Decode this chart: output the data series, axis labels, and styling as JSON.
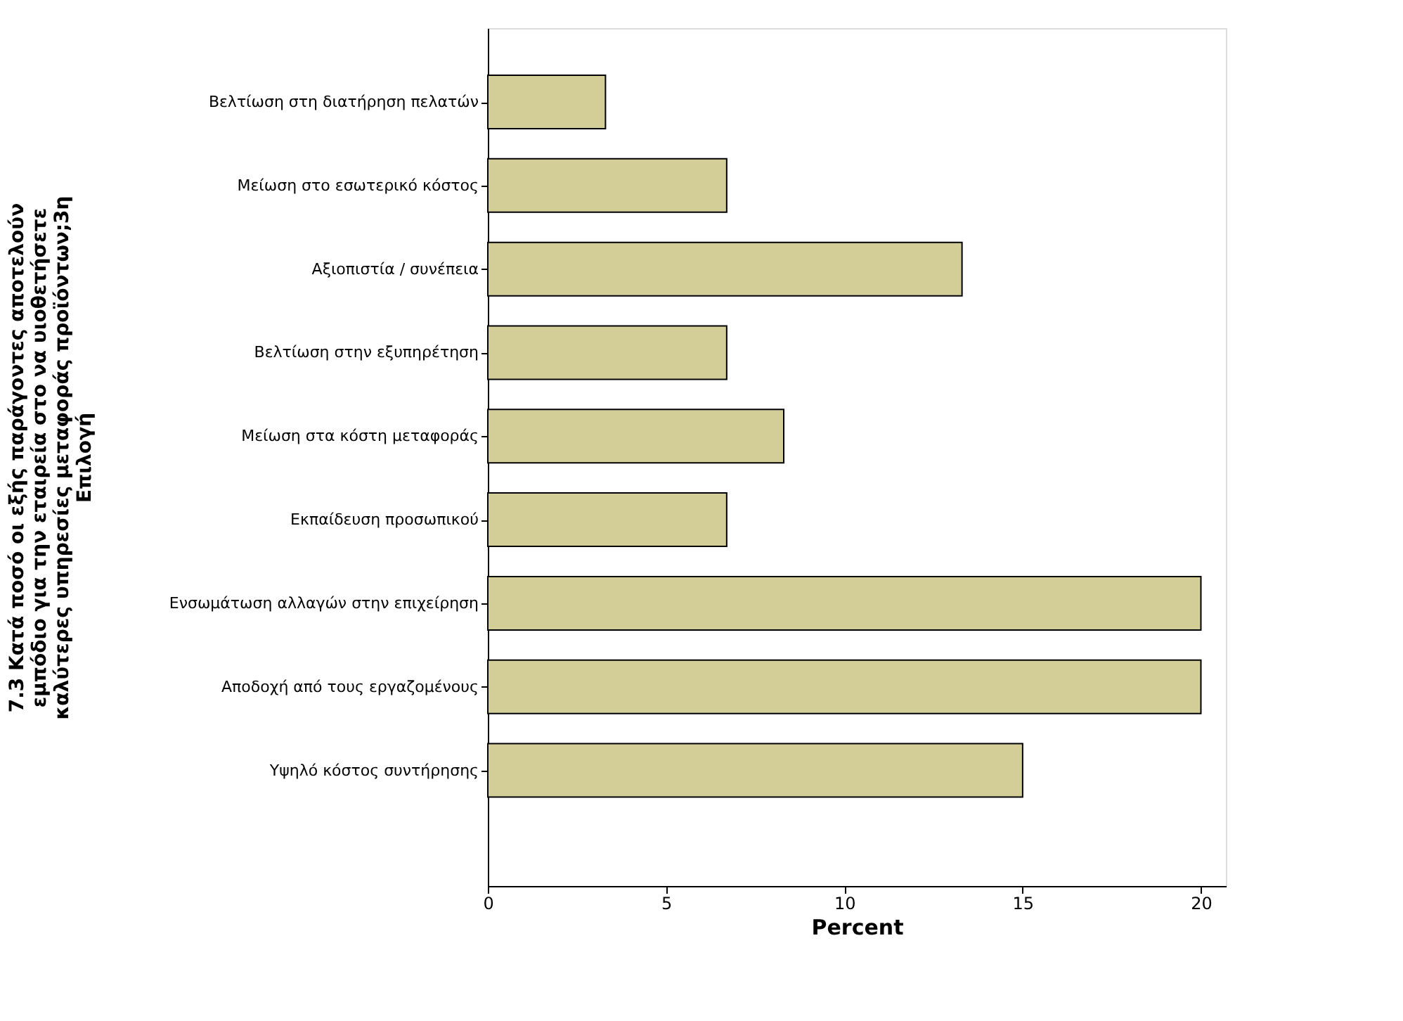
{
  "chart_data": {
    "type": "bar",
    "orientation": "horizontal",
    "ylabel": "7.3 Κατά ποσό οι εξής παράγοντες αποτελούν\nεμπόδιο για την εταιρεία στο να υιοθετήσετε\nκαλύτερες υπηρεσίες μεταφοράς προϊόντων;3η\nΕπιλογή",
    "xlabel": "Percent",
    "categories": [
      "Βελτίωση στη διατήρηση πελατών",
      "Μείωση στο εσωτερικό κόστος",
      "Αξιοπιστία / συνέπεια",
      "Βελτίωση στην εξυπηρέτηση",
      "Μείωση στα κόστη μεταφοράς",
      "Εκπαίδευση προσωπικού",
      "Ενσωμάτωση αλλαγών στην επιχείρηση",
      "Αποδοχή από τους εργαζομένους",
      "Υψηλό κόστος συντήρησης"
    ],
    "values": [
      3.3,
      6.7,
      13.3,
      6.7,
      8.3,
      6.7,
      20,
      20,
      15
    ],
    "color": "#d3cd98",
    "xlim": [
      0,
      20.7
    ],
    "xticks": [
      0,
      5,
      10,
      15,
      20
    ],
    "grid": false
  }
}
